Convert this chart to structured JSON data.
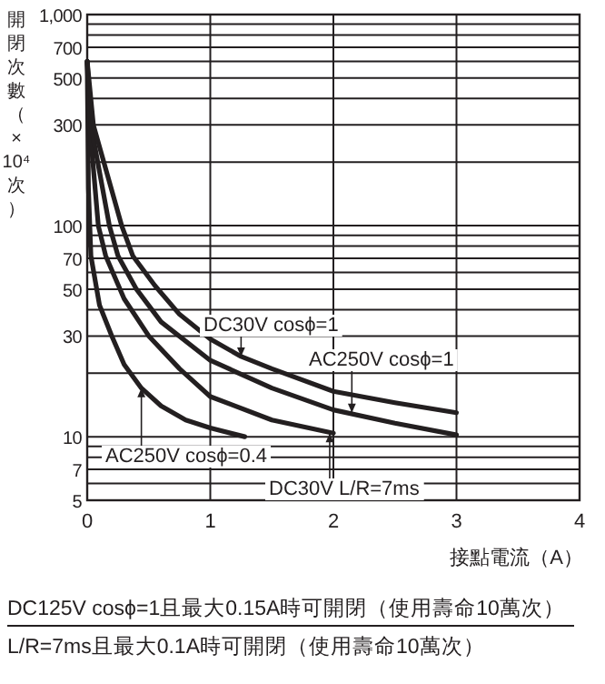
{
  "chart_data": {
    "type": "line",
    "log": "y",
    "grid": true,
    "xlabel": "接點電流（A）",
    "ylabel": "開閉次數（×10⁴次）",
    "xlim": [
      0,
      4
    ],
    "xticks": [
      0,
      1,
      2,
      3,
      4
    ],
    "ylim": [
      5,
      1000
    ],
    "yticks": [
      5,
      {
        "value": 6,
        "label": null
      },
      7,
      {
        "value": 8,
        "label": null
      },
      {
        "value": 9,
        "label": null
      },
      10,
      {
        "value": 20,
        "label": null
      },
      30,
      {
        "value": 40,
        "label": null
      },
      50,
      {
        "value": 60,
        "label": null
      },
      70,
      {
        "value": 80,
        "label": null
      },
      {
        "value": 90,
        "label": null
      },
      100,
      {
        "value": 200,
        "label": null
      },
      300,
      {
        "value": 400,
        "label": null
      },
      500,
      {
        "value": 600,
        "label": null
      },
      700,
      {
        "value": 800,
        "label": null
      },
      {
        "value": 900,
        "label": null
      },
      {
        "value": 1000,
        "label": "1,000"
      }
    ],
    "series": [
      {
        "color": "#231f20",
        "x": [
          0,
          0.01,
          0.03,
          0.1,
          0.2,
          0.3,
          0.44,
          0.6,
          0.8,
          1.0,
          1.28
        ],
        "values": [
          600,
          150,
          72,
          42,
          30,
          22,
          17,
          14,
          12,
          11,
          10
        ]
      },
      {
        "color": "#231f20",
        "x": [
          0,
          0.02,
          0.09,
          0.15,
          0.3,
          0.5,
          0.75,
          1,
          1.5,
          2
        ],
        "values": [
          600,
          300,
          100,
          72,
          45,
          30,
          21,
          15.5,
          12,
          10.4
        ]
      },
      {
        "color": "#231f20",
        "x": [
          0,
          0.03,
          0.18,
          0.25,
          0.4,
          0.6,
          1,
          1.5,
          2,
          2.5,
          3
        ],
        "values": [
          600,
          300,
          100,
          72,
          50,
          35,
          23,
          17,
          13.4,
          11.6,
          10.2
        ]
      },
      {
        "color": "#231f20",
        "x": [
          0,
          0.05,
          0.28,
          0.37,
          0.55,
          0.75,
          1,
          1.25,
          1.5,
          2,
          2.5,
          3
        ],
        "values": [
          600,
          300,
          100,
          72,
          52,
          38,
          29,
          24,
          21,
          16.4,
          14.5,
          13
        ]
      }
    ],
    "annotations": [
      {
        "text": "DC30V  cosϕ=1",
        "x": 1.25,
        "y": 24
      },
      {
        "text": "AC250V  cosϕ=1",
        "x": 2.15,
        "y": 13
      },
      {
        "text": "AC250V  cosϕ=0.4",
        "x": 0.44,
        "y": 17
      },
      {
        "text": "DC30V L/R=7ms",
        "x": 1.97,
        "y": 10.4
      },
      "DC125V cosϕ=1且最大0.15A時可開閉（使用壽命10萬次）",
      "L/R=7ms且最大0.1A時可開閉（使用壽命10萬次）"
    ]
  }
}
